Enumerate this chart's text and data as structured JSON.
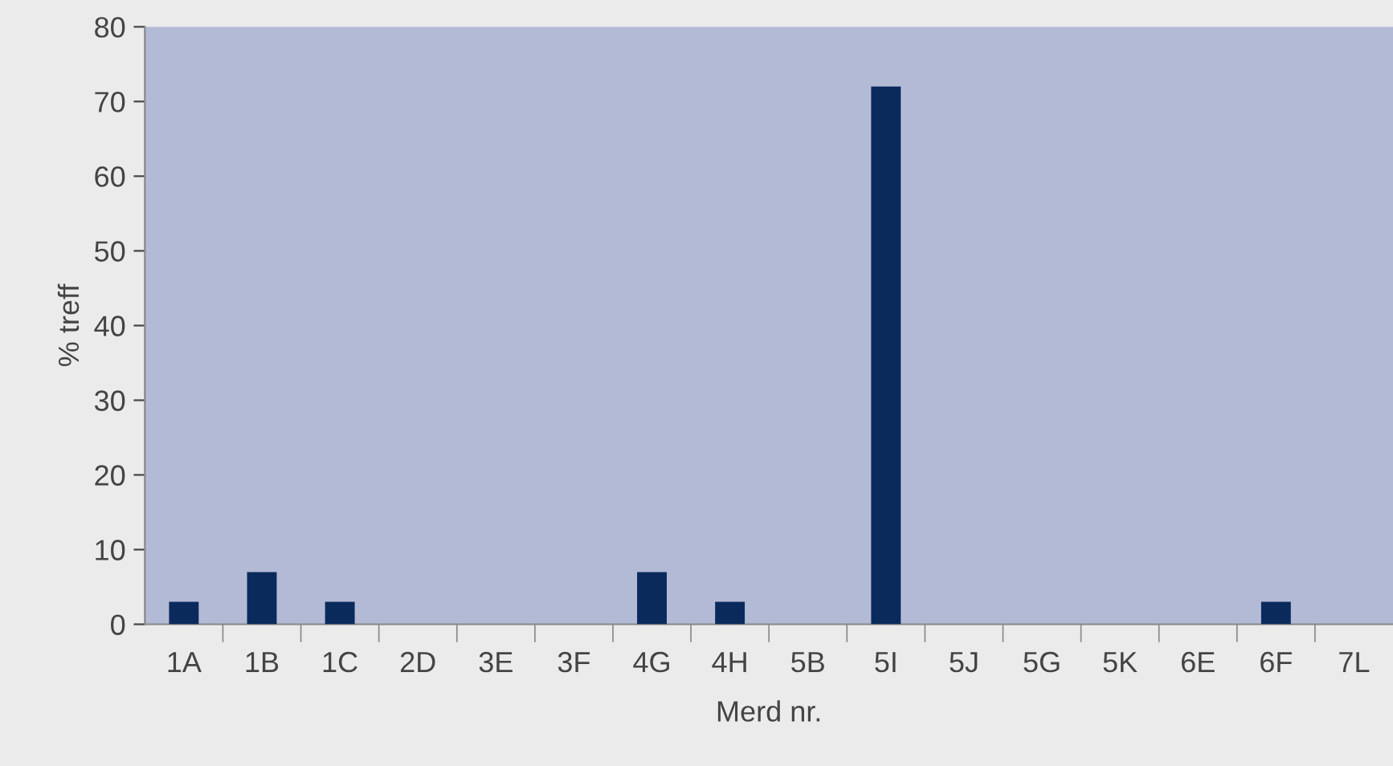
{
  "chart_data": {
    "type": "bar",
    "xlabel": "Merd nr.",
    "ylabel": "% treff",
    "categories": [
      "1A",
      "1B",
      "1C",
      "2D",
      "3E",
      "3F",
      "4G",
      "4H",
      "5B",
      "5I",
      "5J",
      "5G",
      "5K",
      "6E",
      "6F",
      "7L"
    ],
    "values": [
      3,
      7,
      3,
      0,
      0,
      0,
      7,
      3,
      0,
      72,
      0,
      0,
      0,
      0,
      3,
      0
    ],
    "color": "#0b2a5c",
    "ylim": [
      0,
      80
    ],
    "yticks": [
      0,
      10,
      20,
      30,
      40,
      50,
      60,
      70,
      80
    ],
    "grid": false,
    "legend": false
  }
}
